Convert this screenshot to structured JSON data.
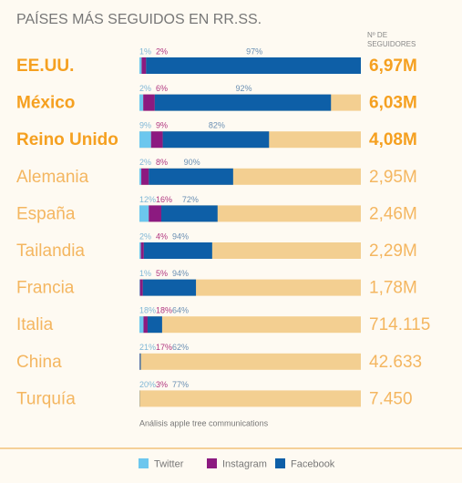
{
  "chart_data": {
    "type": "stacked-bar",
    "title": "PAÍSES MÁS SEGUIDOS EN RR.SS.",
    "value_header": "Nº DE SEGUIDORES",
    "source": "Análisis apple tree communications",
    "categories": [
      "EE.UU.",
      "México",
      "Reino Unido",
      "Alemania",
      "España",
      "Tailandia",
      "Francia",
      "Italia",
      "China",
      "Turquía"
    ],
    "series": [
      {
        "name": "Twitter",
        "color": "#6cc7ee",
        "values": [
          1,
          2,
          9,
          2,
          12,
          2,
          1,
          18,
          21,
          20
        ],
        "value_labels": [
          "1%",
          "2%",
          "9%",
          "2%",
          "12%",
          "2%",
          "1%",
          "18%",
          "21%",
          "20%"
        ]
      },
      {
        "name": "Instagram",
        "color": "#8c1a80",
        "values": [
          2,
          6,
          9,
          8,
          16,
          4,
          5,
          18,
          17,
          3
        ],
        "value_labels": [
          "2%",
          "6%",
          "9%",
          "8%",
          "16%",
          "4%",
          "5%",
          "18%",
          "17%",
          "3%"
        ]
      },
      {
        "name": "Facebook",
        "color": "#0e5fa7",
        "values": [
          97,
          92,
          82,
          90,
          72,
          94,
          94,
          64,
          62,
          77
        ],
        "value_labels": [
          "97%",
          "92%",
          "82%",
          "90%",
          "72%",
          "94%",
          "94%",
          "64%",
          "62%",
          "77%"
        ]
      }
    ],
    "totals": {
      "values": [
        6970000,
        6030000,
        4080000,
        2950000,
        2460000,
        2290000,
        1780000,
        714115,
        42633,
        7450
      ],
      "value_labels": [
        "6,97M",
        "6,03M",
        "4,08M",
        "2,95M",
        "2,46M",
        "2,29M",
        "1,78M",
        "714.115",
        "42.633",
        "7.450"
      ]
    }
  }
}
